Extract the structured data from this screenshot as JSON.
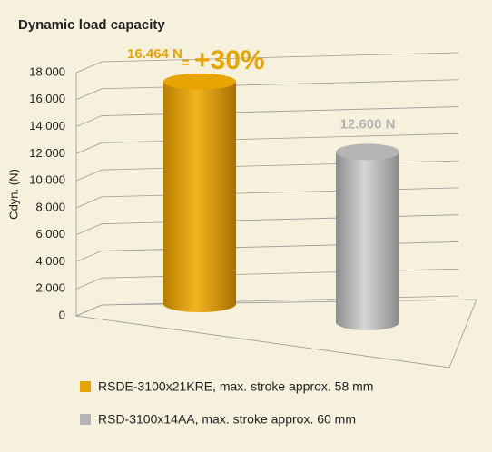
{
  "chart_data": {
    "type": "bar",
    "title": "Dynamic load capacity",
    "y_label": "Cdyn. (N)",
    "ylim": [
      0,
      18000
    ],
    "yticks": [
      {
        "value": 0,
        "label": "0"
      },
      {
        "value": 2000,
        "label": "2.000"
      },
      {
        "value": 4000,
        "label": "4.000"
      },
      {
        "value": 6000,
        "label": "6.000"
      },
      {
        "value": 8000,
        "label": "8.000"
      },
      {
        "value": 10000,
        "label": "10.000"
      },
      {
        "value": 12000,
        "label": "12.000"
      },
      {
        "value": 14000,
        "label": "14.000"
      },
      {
        "value": 16000,
        "label": "16.000"
      },
      {
        "value": 18000,
        "label": "18.000"
      }
    ],
    "grid": true,
    "series": [
      {
        "name": "RSDE-3100x21KRE, max. stroke approx. 58 mm",
        "color": "#e8a400",
        "values": [
          16464
        ],
        "value_labels": [
          "16.464 N"
        ]
      },
      {
        "name": "RSD-3100x14AA, max. stroke approx. 60 mm",
        "color": "#b4b4b4",
        "values": [
          12600
        ],
        "value_labels": [
          "12.600 N"
        ]
      }
    ],
    "annotation": {
      "separator": "=",
      "text": "+30%"
    }
  }
}
